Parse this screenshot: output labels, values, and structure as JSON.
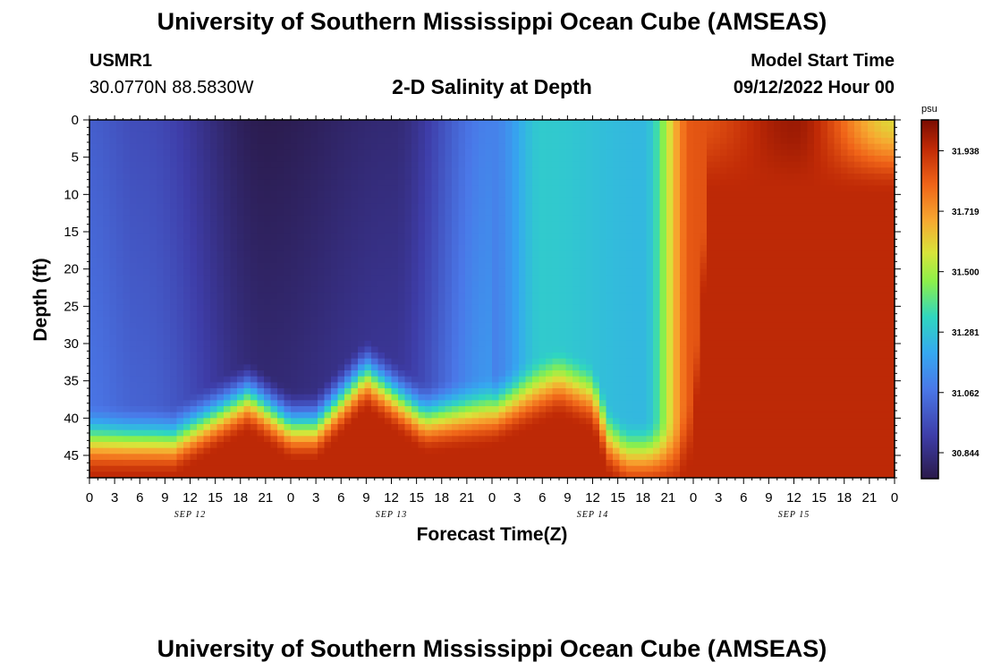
{
  "header": {
    "title": "University of Southern Mississippi Ocean Cube (AMSEAS)",
    "station": "USMR1",
    "coords": "30.0770N  88.5830W",
    "plot_title": "2-D Salinity at Depth",
    "model_label": "Model Start Time",
    "model_time": "09/12/2022 Hour 00"
  },
  "footer": {
    "title": "University of Southern Mississippi Ocean Cube (AMSEAS)"
  },
  "chart_data": {
    "type": "heatmap",
    "title": "2-D Salinity at Depth",
    "xlabel": "Forecast Time(Z)",
    "ylabel": "Depth (ft)",
    "x_tick_labels": [
      "0",
      "3",
      "6",
      "9",
      "12",
      "15",
      "18",
      "21",
      "0",
      "3",
      "6",
      "9",
      "12",
      "15",
      "18",
      "21",
      "0",
      "3",
      "6",
      "9",
      "12",
      "15",
      "18",
      "21",
      "0",
      "3",
      "6",
      "9",
      "12",
      "15",
      "18",
      "21",
      "0"
    ],
    "x_range_hours": [
      0,
      96
    ],
    "day_labels": [
      {
        "label": "SEP 12",
        "hour": 12
      },
      {
        "label": "SEP 13",
        "hour": 36
      },
      {
        "label": "SEP 14",
        "hour": 60
      },
      {
        "label": "SEP 15",
        "hour": 84
      }
    ],
    "y_ticks": [
      0,
      5,
      10,
      15,
      20,
      25,
      30,
      35,
      40,
      45
    ],
    "y_range_ft": [
      0,
      48
    ],
    "colorbar": {
      "unit": "psu",
      "ticks": [
        "31.938",
        "31.719",
        "31.500",
        "31.281",
        "31.062",
        "30.844"
      ],
      "range": [
        30.75,
        32.05
      ]
    },
    "approx_surface_salinity_psu": [
      {
        "hour": 0,
        "value": 31.0
      },
      {
        "hour": 6,
        "value": 30.95
      },
      {
        "hour": 21,
        "value": 30.76
      },
      {
        "hour": 36,
        "value": 30.82
      },
      {
        "hour": 48,
        "value": 31.1
      },
      {
        "hour": 54,
        "value": 31.3
      },
      {
        "hour": 66,
        "value": 31.25
      },
      {
        "hour": 72,
        "value": 31.85
      },
      {
        "hour": 84,
        "value": 32.0
      },
      {
        "hour": 96,
        "value": 31.6
      }
    ],
    "approx_bottom_salinity_psu": 31.95,
    "colors": {
      "low": "#2a1a4a",
      "mid": "#3ccfbf",
      "high": "#7e0c02",
      "frame": "#000000"
    }
  }
}
